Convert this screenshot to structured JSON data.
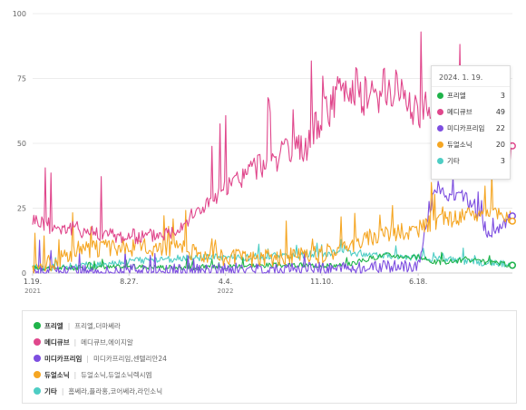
{
  "chart_data": {
    "type": "line",
    "y_ticks": [
      "100",
      "75",
      "50",
      "25",
      "0"
    ],
    "ylim": [
      0,
      100
    ],
    "x_ticks": [
      {
        "label": "1.19.",
        "year": "2021",
        "date": "2021-01-19"
      },
      {
        "label": "8.27.",
        "year": "",
        "date": "2021-08-27"
      },
      {
        "label": "4.4.",
        "year": "2022",
        "date": "2022-04-04"
      },
      {
        "label": "11.10.",
        "year": "",
        "date": "2022-11-10"
      },
      {
        "label": "6.18.",
        "year": "",
        "date": "2023-06-18"
      }
    ],
    "x_start": "2021-01-19",
    "x_end": "2024-01-19",
    "grid": "horizontal",
    "series": [
      {
        "name": "프리엘",
        "color": "#1fb34a",
        "dates": [
          "2021-01-19",
          "2021-06-01",
          "2021-10-01",
          "2022-02-01",
          "2022-06-01",
          "2022-10-01",
          "2023-01-01",
          "2023-04-01",
          "2023-06-18",
          "2023-08-01",
          "2023-10-01",
          "2023-12-01",
          "2024-01-19"
        ],
        "values": [
          2,
          2,
          2.5,
          2,
          3,
          3,
          3,
          7,
          6,
          4,
          5,
          4,
          3
        ]
      },
      {
        "name": "메디큐브",
        "color": "#e0478c",
        "dates": [
          "2021-01-19",
          "2021-03-01",
          "2021-05-01",
          "2021-07-01",
          "2021-08-27",
          "2021-10-01",
          "2021-12-01",
          "2022-02-01",
          "2022-04-04",
          "2022-06-01",
          "2022-08-01",
          "2022-10-01",
          "2022-11-10",
          "2023-01-01",
          "2023-03-01",
          "2023-05-01",
          "2023-06-18",
          "2023-08-01",
          "2023-09-15",
          "2023-11-01",
          "2023-12-15",
          "2024-01-19"
        ],
        "values": [
          21,
          18,
          17,
          15,
          14,
          14,
          16,
          24,
          32,
          40,
          45,
          48,
          60,
          72,
          68,
          72,
          62,
          70,
          60,
          58,
          50,
          49
        ]
      },
      {
        "name": "미디카프리임",
        "color": "#7d4ee0",
        "dates": [
          "2021-01-19",
          "2021-06-01",
          "2022-01-01",
          "2022-06-01",
          "2023-01-01",
          "2023-06-18",
          "2023-07-15",
          "2023-08-01",
          "2023-09-01",
          "2023-10-01",
          "2023-11-01",
          "2023-12-01",
          "2024-01-19"
        ],
        "values": [
          1,
          1,
          1,
          1.5,
          2,
          3,
          25,
          34,
          28,
          30,
          22,
          14,
          22
        ]
      },
      {
        "name": "듀얼소닉",
        "color": "#f5a623",
        "dates": [
          "2021-01-19",
          "2021-03-01",
          "2021-05-01",
          "2021-08-27",
          "2021-12-01",
          "2022-04-04",
          "2022-08-01",
          "2022-11-10",
          "2023-03-01",
          "2023-06-18",
          "2023-08-01",
          "2023-10-01",
          "2023-12-01",
          "2024-01-19"
        ],
        "values": [
          2,
          4,
          9,
          10,
          10,
          6,
          6,
          7,
          14,
          17,
          20,
          22,
          24,
          20
        ]
      },
      {
        "name": "기타",
        "color": "#4ecdc4",
        "dates": [
          "2021-01-19",
          "2021-06-01",
          "2021-10-01",
          "2022-02-01",
          "2022-06-01",
          "2022-10-01",
          "2023-01-01",
          "2023-04-01",
          "2023-06-18",
          "2023-09-01",
          "2023-12-01",
          "2024-01-19"
        ],
        "values": [
          2,
          3,
          5,
          6,
          6,
          7,
          8,
          7,
          6,
          5,
          4,
          3
        ]
      }
    ]
  },
  "tooltip": {
    "date": "2024. 1. 19.",
    "items": [
      {
        "name": "프리엘",
        "value": "3",
        "color": "#1fb34a"
      },
      {
        "name": "메디큐브",
        "value": "49",
        "color": "#e0478c"
      },
      {
        "name": "미디카프리임",
        "value": "22",
        "color": "#7d4ee0"
      },
      {
        "name": "듀얼소닉",
        "value": "20",
        "color": "#f5a623"
      },
      {
        "name": "기타",
        "value": "3",
        "color": "#4ecdc4"
      }
    ]
  },
  "legend": [
    {
      "name": "프리엘",
      "brands": "프리엘,더마쎄라",
      "color": "#1fb34a"
    },
    {
      "name": "메디큐브",
      "brands": "메디큐브,에이지알",
      "color": "#e0478c"
    },
    {
      "name": "미디카프리임",
      "brands": "미디카프리임,센텔리안24",
      "color": "#7d4ee0"
    },
    {
      "name": "듀얼소닉",
      "brands": "듀얼소닉,듀얼소닉렉시엠",
      "color": "#f5a623"
    },
    {
      "name": "기타",
      "brands": "홈쎄라,플라홍,코어쎄라,라인소닉",
      "color": "#4ecdc4"
    }
  ]
}
